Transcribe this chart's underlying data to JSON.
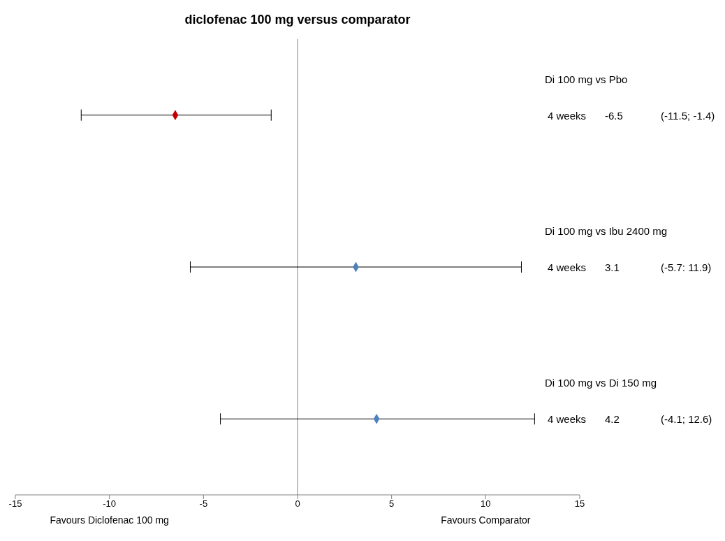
{
  "chart_data": {
    "type": "scatter",
    "orientation": "horizontal",
    "title": "diclofenac 100 mg  versus comparator",
    "categories": [
      null,
      null,
      null
    ],
    "values": [
      -6.5,
      3.1,
      4.2
    ],
    "errors": [
      [
        -11.5,
        -1.4
      ],
      [
        -5.7,
        11.9
      ],
      [
        -4.1,
        12.6
      ]
    ],
    "colors": [
      "#c00000",
      "#4f81bd",
      "#4f81bd"
    ],
    "value_labels": [
      "-6.5",
      "3.1",
      "4.2"
    ],
    "marker": "diamond",
    "xlim": [
      -15,
      15
    ],
    "xticks": [
      -15,
      -10,
      -5,
      0,
      5,
      10,
      15
    ],
    "tick_labels": "x",
    "ref_lines": [
      {
        "axis": "x",
        "value": 0,
        "color": "#808080"
      }
    ],
    "annotations": [
      "Di 100 mg vs Pbo",
      "4 weeks",
      "(-11.5; -1.4)",
      "Di 100 mg vs Ibu 2400 mg",
      "4 weeks",
      "(-5.7: 11.9)",
      "Di 100 mg vs Di 150 mg",
      "4 weeks",
      "(-4.1; 12.6)",
      "Favours Diclofenac 100 mg",
      "Favours Comparator"
    ]
  }
}
